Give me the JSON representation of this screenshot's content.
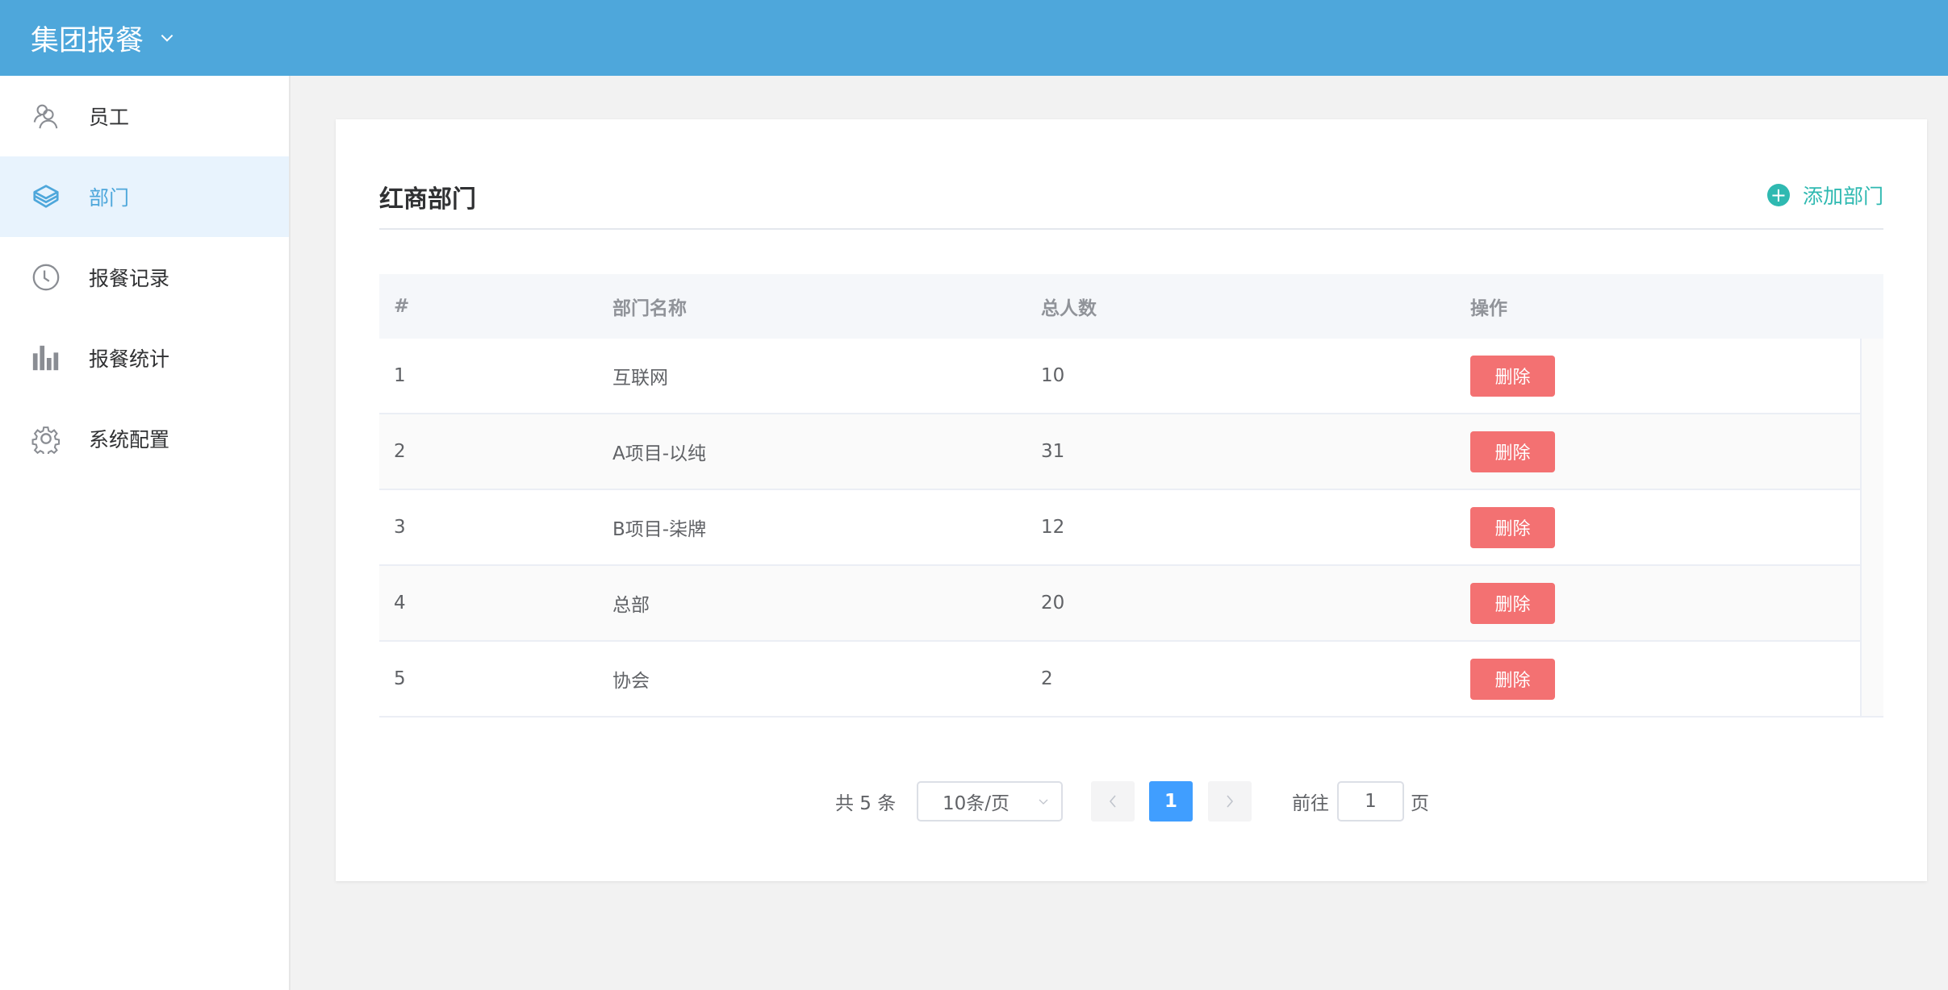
{
  "header": {
    "title": "集团报餐"
  },
  "sidebar": {
    "items": [
      {
        "label": "员工",
        "icon": "users-icon"
      },
      {
        "label": "部门",
        "icon": "layers-icon",
        "active": true
      },
      {
        "label": "报餐记录",
        "icon": "clock-icon"
      },
      {
        "label": "报餐统计",
        "icon": "bar-chart-icon"
      },
      {
        "label": "系统配置",
        "icon": "gear-icon"
      }
    ]
  },
  "card": {
    "title": "红商部门",
    "add_label": "添加部门"
  },
  "colors": {
    "header": "#4ea7db",
    "accent": "#2fb9b1",
    "delete": "#f37172",
    "page_active": "#409eff"
  },
  "table": {
    "headers": [
      "#",
      "部门名称",
      "总人数",
      "操作"
    ],
    "rows": [
      {
        "id": "1",
        "name": "互联网",
        "count": "10",
        "action": "删除"
      },
      {
        "id": "2",
        "name": "A项目-以纯",
        "count": "31",
        "action": "删除"
      },
      {
        "id": "3",
        "name": "B项目-柒牌",
        "count": "12",
        "action": "删除"
      },
      {
        "id": "4",
        "name": "总部",
        "count": "20",
        "action": "删除"
      },
      {
        "id": "5",
        "name": "协会",
        "count": "2",
        "action": "删除"
      }
    ]
  },
  "pagination": {
    "total": "共 5 条",
    "page_size": "10条/页",
    "current": "1",
    "goto_label": "前往",
    "goto_value": "1",
    "page_suffix": "页"
  }
}
